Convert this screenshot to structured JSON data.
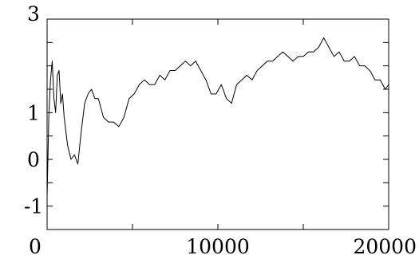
{
  "chart_data": {
    "type": "line",
    "title": "",
    "xlabel": "",
    "ylabel": "",
    "xlim": [
      0,
      20000
    ],
    "ylim": [
      -1.5,
      3
    ],
    "grid": false,
    "legend": "none",
    "x_ticks": [
      0,
      10000,
      20000
    ],
    "x_minor_ticks": [
      5000,
      15000
    ],
    "y_ticks": [
      -1,
      0,
      1,
      3
    ],
    "y_minor_ticks": [
      -1.5,
      -0.5,
      0.5,
      1.5,
      2,
      2.5
    ],
    "x_tick_labels": [
      "0",
      "10000",
      "20000"
    ],
    "y_tick_labels": [
      "-1",
      "0",
      "1",
      "3"
    ],
    "line_color": "#000000",
    "series": [
      {
        "x": [
          0,
          100,
          200,
          300,
          400,
          500,
          600,
          700,
          800,
          900,
          1000,
          1200,
          1400,
          1600,
          1800,
          2000,
          2200,
          2400,
          2600,
          2800,
          3000,
          3300,
          3600,
          3900,
          4200,
          4500,
          4800,
          5100,
          5400,
          5700,
          6000,
          6300,
          6600,
          6900,
          7200,
          7500,
          7800,
          8100,
          8400,
          8700,
          9000,
          9300,
          9600,
          9900,
          10200,
          10500,
          10800,
          11100,
          11400,
          11700,
          12000,
          12300,
          12600,
          12900,
          13200,
          13500,
          13800,
          14100,
          14400,
          14700,
          15000,
          15300,
          15600,
          15900,
          16200,
          16500,
          16800,
          17100,
          17400,
          17700,
          18000,
          18300,
          18600,
          18900,
          19200,
          19500,
          19800,
          20000
        ],
        "y": [
          -0.8,
          0.9,
          1.7,
          2.1,
          1.3,
          1.0,
          1.8,
          1.9,
          1.2,
          1.4,
          0.9,
          0.3,
          0.0,
          0.1,
          -0.1,
          0.6,
          1.2,
          1.4,
          1.5,
          1.3,
          1.3,
          0.9,
          0.8,
          0.8,
          0.7,
          0.9,
          1.3,
          1.4,
          1.6,
          1.7,
          1.6,
          1.6,
          1.8,
          1.7,
          1.9,
          1.9,
          2.0,
          2.1,
          2.0,
          2.1,
          1.9,
          1.7,
          1.4,
          1.4,
          1.6,
          1.3,
          1.2,
          1.6,
          1.7,
          1.8,
          1.7,
          1.9,
          2.0,
          2.1,
          2.1,
          2.2,
          2.3,
          2.2,
          2.1,
          2.2,
          2.2,
          2.3,
          2.3,
          2.4,
          2.6,
          2.4,
          2.2,
          2.3,
          2.1,
          2.1,
          2.2,
          2.0,
          2.0,
          1.9,
          1.7,
          1.7,
          1.5,
          1.6
        ]
      }
    ]
  }
}
